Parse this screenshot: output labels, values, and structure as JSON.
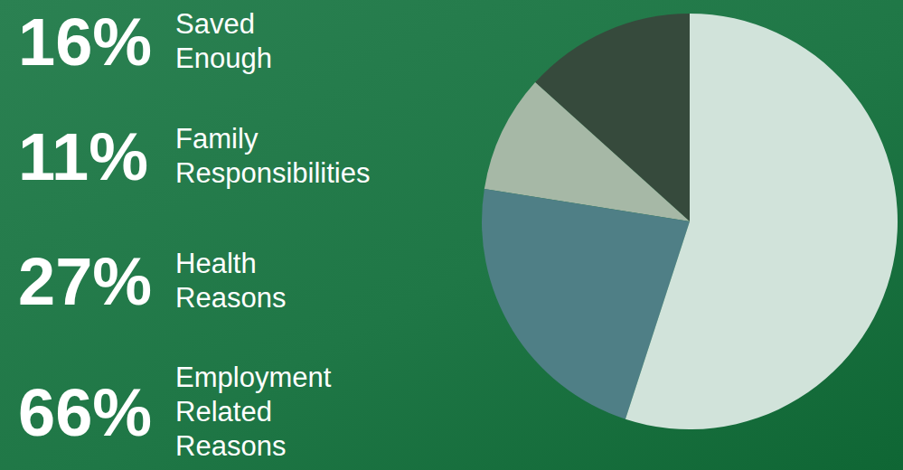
{
  "chart_data": {
    "type": "pie",
    "categories": [
      "Saved Enough",
      "Family Responsibilities",
      "Health Reasons",
      "Employment Related Reasons"
    ],
    "values": [
      16,
      11,
      27,
      66
    ],
    "value_labels": [
      "16%",
      "11%",
      "27%",
      "66%"
    ],
    "colors": [
      "#364a3c",
      "#a6b8a6",
      "#4f7f86",
      "#d1e3da"
    ],
    "data_labels": true
  }
}
